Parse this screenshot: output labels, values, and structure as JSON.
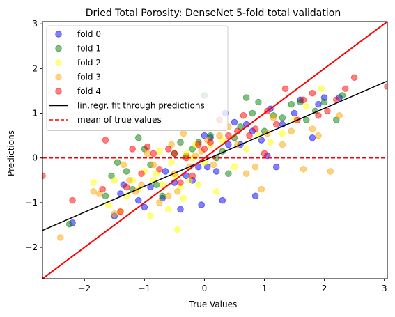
{
  "chart_data": {
    "type": "scatter",
    "title": "Dried Total Porosity: DenseNet 5-fold total validation",
    "xlabel": "True Values",
    "ylabel": "Predictions",
    "xlim": [
      -2.7,
      3.05
    ],
    "ylim": [
      -2.7,
      3.05
    ],
    "xticks": [
      -2,
      -1,
      0,
      1,
      2,
      3
    ],
    "yticks": [
      -2,
      -1,
      0,
      1,
      2,
      3
    ],
    "tick_labels": [
      "−2",
      "−1",
      "0",
      "1",
      "2",
      "3"
    ],
    "grid": false,
    "legend_position": "top-left",
    "series": [
      {
        "name": "fold 0",
        "color": "#0000ff",
        "points": [
          [
            -2.2,
            -1.45
          ],
          [
            -1.5,
            -1.3
          ],
          [
            -1.4,
            -0.8
          ],
          [
            -1.35,
            -0.6
          ],
          [
            -1.1,
            -0.95
          ],
          [
            -1.0,
            -1.1
          ],
          [
            -0.9,
            -0.65
          ],
          [
            -0.7,
            -0.9
          ],
          [
            -0.65,
            -0.3
          ],
          [
            -0.5,
            -0.55
          ],
          [
            -0.4,
            -1.15
          ],
          [
            -0.3,
            -0.4
          ],
          [
            -0.2,
            -0.5
          ],
          [
            -0.1,
            -0.2
          ],
          [
            -0.05,
            -1.05
          ],
          [
            0.0,
            0.5
          ],
          [
            0.05,
            -0.2
          ],
          [
            0.1,
            0.45
          ],
          [
            0.2,
            -0.3
          ],
          [
            0.3,
            -0.95
          ],
          [
            0.35,
            1.0
          ],
          [
            0.4,
            0.3
          ],
          [
            0.5,
            0.8
          ],
          [
            0.6,
            0.3
          ],
          [
            0.7,
            0.75
          ],
          [
            0.8,
            0.6
          ],
          [
            0.85,
            -0.85
          ],
          [
            0.95,
            0.4
          ],
          [
            1.05,
            0.05
          ],
          [
            1.1,
            1.1
          ],
          [
            1.2,
            -0.2
          ],
          [
            1.3,
            0.75
          ],
          [
            1.5,
            1.0
          ],
          [
            1.6,
            1.3
          ],
          [
            1.8,
            0.45
          ],
          [
            1.9,
            1.2
          ],
          [
            2.0,
            1.35
          ],
          [
            2.25,
            1.35
          ]
        ]
      },
      {
        "name": "fold 1",
        "color": "#008000",
        "points": [
          [
            -2.25,
            -1.48
          ],
          [
            -1.65,
            -0.85
          ],
          [
            -1.55,
            -0.4
          ],
          [
            -1.45,
            -0.1
          ],
          [
            -1.3,
            -0.3
          ],
          [
            -1.2,
            -0.7
          ],
          [
            -1.1,
            0.45
          ],
          [
            -1.0,
            0.2
          ],
          [
            -0.9,
            -0.15
          ],
          [
            -0.8,
            -0.6
          ],
          [
            -0.7,
            -0.85
          ],
          [
            -0.5,
            0.1
          ],
          [
            -0.4,
            0.35
          ],
          [
            -0.3,
            0.05
          ],
          [
            -0.2,
            0.2
          ],
          [
            -0.1,
            0.35
          ],
          [
            0.0,
            1.4
          ],
          [
            0.1,
            0.5
          ],
          [
            0.2,
            0.0
          ],
          [
            0.3,
            0.15
          ],
          [
            0.4,
            -0.35
          ],
          [
            0.5,
            0.45
          ],
          [
            0.6,
            0.7
          ],
          [
            0.7,
            1.35
          ],
          [
            0.8,
            1.0
          ],
          [
            0.9,
            1.25
          ],
          [
            1.0,
            0.6
          ],
          [
            1.15,
            0.95
          ],
          [
            1.3,
            0.9
          ],
          [
            1.45,
            1.2
          ],
          [
            1.6,
            1.25
          ],
          [
            1.7,
            0.85
          ],
          [
            1.85,
            1.05
          ],
          [
            2.0,
            1.25
          ],
          [
            2.2,
            0.85
          ],
          [
            2.3,
            1.4
          ]
        ]
      },
      {
        "name": "fold 2",
        "color": "#ffff00",
        "points": [
          [
            -1.85,
            -0.55
          ],
          [
            -1.6,
            -1.05
          ],
          [
            -1.5,
            -0.5
          ],
          [
            -1.4,
            -1.2
          ],
          [
            -1.3,
            -0.85
          ],
          [
            -1.2,
            -0.5
          ],
          [
            -1.1,
            -0.7
          ],
          [
            -1.0,
            -0.3
          ],
          [
            -0.9,
            -1.3
          ],
          [
            -0.85,
            -0.5
          ],
          [
            -0.8,
            -0.35
          ],
          [
            -0.75,
            0.15
          ],
          [
            -0.7,
            -0.6
          ],
          [
            -0.6,
            -1.15
          ],
          [
            -0.55,
            -0.1
          ],
          [
            -0.5,
            -0.4
          ],
          [
            -0.45,
            -1.6
          ],
          [
            -0.4,
            -0.65
          ],
          [
            -0.35,
            -0.9
          ],
          [
            -0.3,
            0.1
          ],
          [
            -0.25,
            -0.5
          ],
          [
            -0.2,
            0.0
          ],
          [
            -0.15,
            0.3
          ],
          [
            -0.1,
            -0.6
          ],
          [
            0.0,
            -0.1
          ],
          [
            0.1,
            0.3
          ],
          [
            0.2,
            -0.75
          ],
          [
            0.3,
            0.4
          ],
          [
            0.5,
            -0.2
          ],
          [
            0.7,
            0.2
          ],
          [
            0.9,
            0.5
          ],
          [
            1.1,
            0.35
          ],
          [
            1.3,
            0.55
          ],
          [
            1.5,
            0.85
          ],
          [
            1.7,
            1.15
          ],
          [
            1.95,
            1.55
          ]
        ]
      },
      {
        "name": "fold 3",
        "color": "#ffa500",
        "points": [
          [
            -2.4,
            -1.78
          ],
          [
            -1.85,
            -0.75
          ],
          [
            -1.75,
            -0.8
          ],
          [
            -1.5,
            -1.25
          ],
          [
            -1.35,
            -0.15
          ],
          [
            -1.25,
            -0.5
          ],
          [
            -1.15,
            -0.75
          ],
          [
            -1.05,
            -0.6
          ],
          [
            -0.95,
            0.1
          ],
          [
            -0.85,
            -0.15
          ],
          [
            -0.75,
            -1.0
          ],
          [
            -0.6,
            -0.85
          ],
          [
            -0.55,
            0.3
          ],
          [
            -0.5,
            -0.35
          ],
          [
            -0.45,
            -0.75
          ],
          [
            -0.35,
            0.55
          ],
          [
            -0.25,
            -0.2
          ],
          [
            -0.15,
            0.05
          ],
          [
            -0.05,
            0.15
          ],
          [
            0.05,
            0.4
          ],
          [
            0.15,
            -0.15
          ],
          [
            0.25,
            0.5
          ],
          [
            0.4,
            0.7
          ],
          [
            0.55,
            0.3
          ],
          [
            0.7,
            -0.35
          ],
          [
            0.85,
            -0.2
          ],
          [
            0.95,
            -0.7
          ],
          [
            1.05,
            0.55
          ],
          [
            1.15,
            0.9
          ],
          [
            1.3,
            0.3
          ],
          [
            1.45,
            0.6
          ],
          [
            1.65,
            -0.25
          ],
          [
            1.8,
            0.65
          ],
          [
            1.9,
            0.5
          ],
          [
            2.1,
            -0.3
          ],
          [
            2.25,
            0.95
          ]
        ]
      },
      {
        "name": "fold 4",
        "color": "#ff0000",
        "points": [
          [
            -2.7,
            -0.4
          ],
          [
            -2.2,
            -0.95
          ],
          [
            -1.7,
            -0.7
          ],
          [
            -1.65,
            0.4
          ],
          [
            -1.4,
            -1.2
          ],
          [
            -1.3,
            -0.65
          ],
          [
            -1.2,
            0.2
          ],
          [
            -1.05,
            -0.35
          ],
          [
            -0.95,
            0.25
          ],
          [
            -0.85,
            0.1
          ],
          [
            -0.75,
            -0.25
          ],
          [
            -0.6,
            0.2
          ],
          [
            -0.5,
            0.1
          ],
          [
            -0.4,
            -0.55
          ],
          [
            -0.3,
            0.0
          ],
          [
            -0.2,
            -0.4
          ],
          [
            -0.1,
            0.3
          ],
          [
            0.0,
            0.2
          ],
          [
            0.1,
            0.35
          ],
          [
            0.25,
            0.85
          ],
          [
            0.4,
            0.5
          ],
          [
            0.55,
            0.6
          ],
          [
            0.65,
            0.95
          ],
          [
            0.75,
            0.5
          ],
          [
            0.85,
            0.65
          ],
          [
            1.0,
            0.1
          ],
          [
            1.05,
            1.05
          ],
          [
            1.2,
            0.75
          ],
          [
            1.35,
            1.55
          ],
          [
            1.55,
            0.85
          ],
          [
            1.65,
            1.3
          ],
          [
            1.8,
            1.45
          ],
          [
            1.9,
            0.95
          ],
          [
            2.05,
            1.05
          ],
          [
            2.2,
            1.3
          ],
          [
            2.35,
            1.55
          ],
          [
            2.5,
            1.8
          ],
          [
            3.05,
            1.6
          ]
        ]
      }
    ],
    "lines": [
      {
        "name": "lin.regr. fit through predictions",
        "color": "#000000",
        "style": "solid",
        "x": [
          -2.7,
          3.05
        ],
        "y": [
          -1.62,
          1.72
        ]
      },
      {
        "name": "mean of true values",
        "color": "#ff0000",
        "style": "dashed",
        "x": [
          -2.7,
          3.05
        ],
        "y": [
          0,
          0
        ]
      },
      {
        "name": "",
        "color": "#ff0000",
        "style": "solid",
        "x": [
          -2.7,
          3.05
        ],
        "y": [
          -2.7,
          3.05
        ]
      }
    ]
  }
}
